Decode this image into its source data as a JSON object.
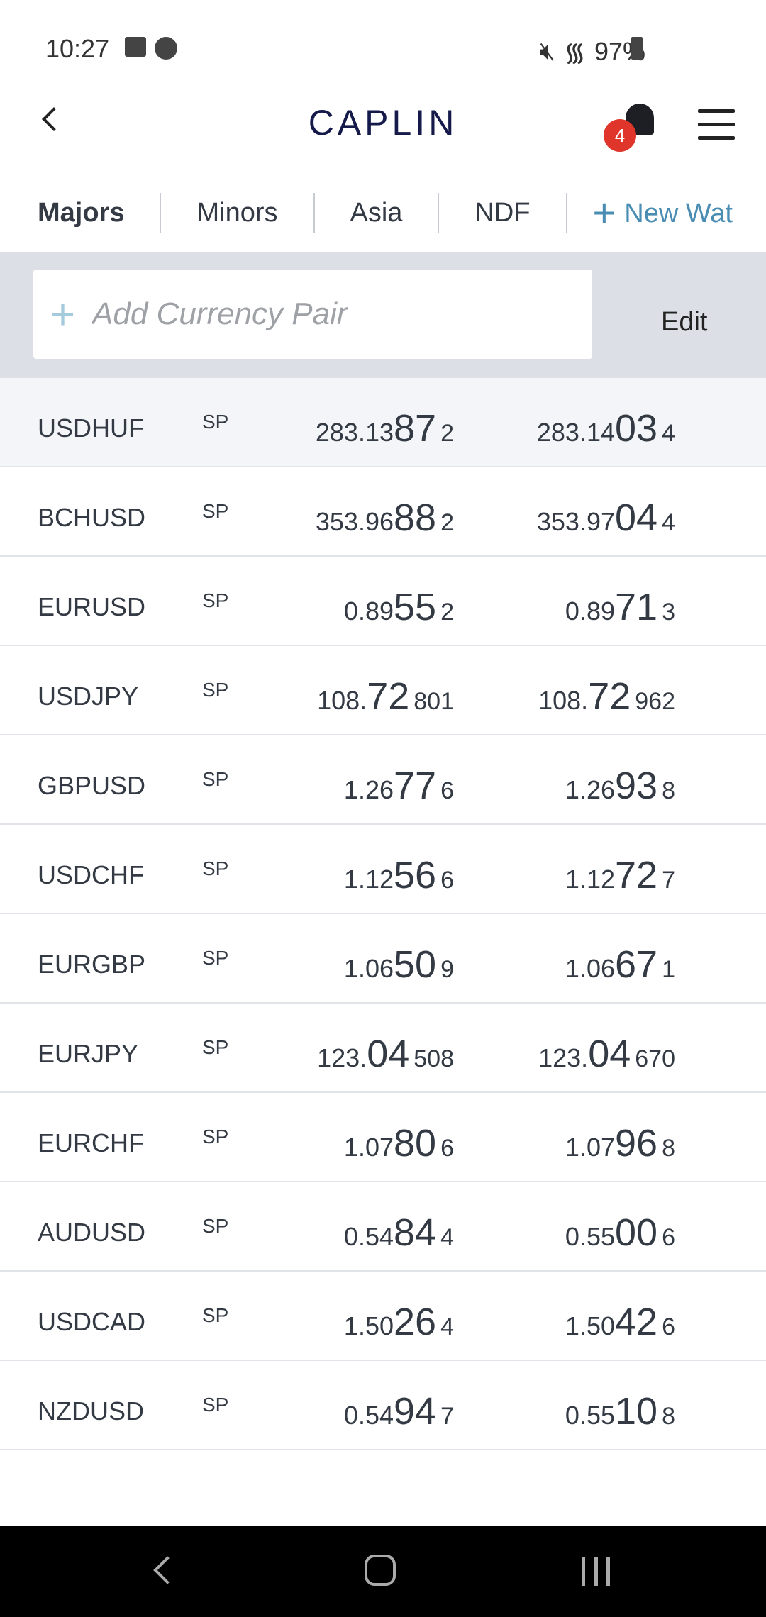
{
  "status_bar": {
    "time": "10:27",
    "battery": "97%"
  },
  "header": {
    "logo": "CAPLIN",
    "notification_count": "4"
  },
  "tabs": [
    {
      "label": "Majors",
      "active": true
    },
    {
      "label": "Minors"
    },
    {
      "label": "Asia"
    },
    {
      "label": "NDF"
    }
  ],
  "new_watchlist_label": "New Wat",
  "search": {
    "placeholder": "Add Currency Pair",
    "value": ""
  },
  "edit_label": "Edit",
  "rows": [
    {
      "pair": "USDHUF",
      "tenor": "SP",
      "bid": {
        "pre": "283.13",
        "big": "87",
        "frac": "2"
      },
      "ask": {
        "pre": "283.14",
        "big": "03",
        "frac": "4"
      }
    },
    {
      "pair": "BCHUSD",
      "tenor": "SP",
      "bid": {
        "pre": "353.96",
        "big": "88",
        "frac": "2"
      },
      "ask": {
        "pre": "353.97",
        "big": "04",
        "frac": "4"
      }
    },
    {
      "pair": "EURUSD",
      "tenor": "SP",
      "bid": {
        "pre": "0.89",
        "big": "55",
        "frac": "2"
      },
      "ask": {
        "pre": "0.89",
        "big": "71",
        "frac": "3"
      }
    },
    {
      "pair": "USDJPY",
      "tenor": "SP",
      "bid": {
        "pre": "108.",
        "big": "72",
        "frac": "801"
      },
      "ask": {
        "pre": "108.",
        "big": "72",
        "frac": "962"
      }
    },
    {
      "pair": "GBPUSD",
      "tenor": "SP",
      "bid": {
        "pre": "1.26",
        "big": "77",
        "frac": "6"
      },
      "ask": {
        "pre": "1.26",
        "big": "93",
        "frac": "8"
      }
    },
    {
      "pair": "USDCHF",
      "tenor": "SP",
      "bid": {
        "pre": "1.12",
        "big": "56",
        "frac": "6"
      },
      "ask": {
        "pre": "1.12",
        "big": "72",
        "frac": "7"
      }
    },
    {
      "pair": "EURGBP",
      "tenor": "SP",
      "bid": {
        "pre": "1.06",
        "big": "50",
        "frac": "9"
      },
      "ask": {
        "pre": "1.06",
        "big": "67",
        "frac": "1"
      }
    },
    {
      "pair": "EURJPY",
      "tenor": "SP",
      "bid": {
        "pre": "123.",
        "big": "04",
        "frac": "508"
      },
      "ask": {
        "pre": "123.",
        "big": "04",
        "frac": "670"
      }
    },
    {
      "pair": "EURCHF",
      "tenor": "SP",
      "bid": {
        "pre": "1.07",
        "big": "80",
        "frac": "6"
      },
      "ask": {
        "pre": "1.07",
        "big": "96",
        "frac": "8"
      }
    },
    {
      "pair": "AUDUSD",
      "tenor": "SP",
      "bid": {
        "pre": "0.54",
        "big": "84",
        "frac": "4"
      },
      "ask": {
        "pre": "0.55",
        "big": "00",
        "frac": "6"
      }
    },
    {
      "pair": "USDCAD",
      "tenor": "SP",
      "bid": {
        "pre": "1.50",
        "big": "26",
        "frac": "4"
      },
      "ask": {
        "pre": "1.50",
        "big": "42",
        "frac": "6"
      }
    },
    {
      "pair": "NZDUSD",
      "tenor": "SP",
      "bid": {
        "pre": "0.54",
        "big": "94",
        "frac": "7"
      },
      "ask": {
        "pre": "0.55",
        "big": "10",
        "frac": "8"
      }
    }
  ],
  "colors": {
    "brand": "#151a4a",
    "accent": "#4a8db3",
    "badge": "#e0352a",
    "band": "#dce0e6"
  }
}
